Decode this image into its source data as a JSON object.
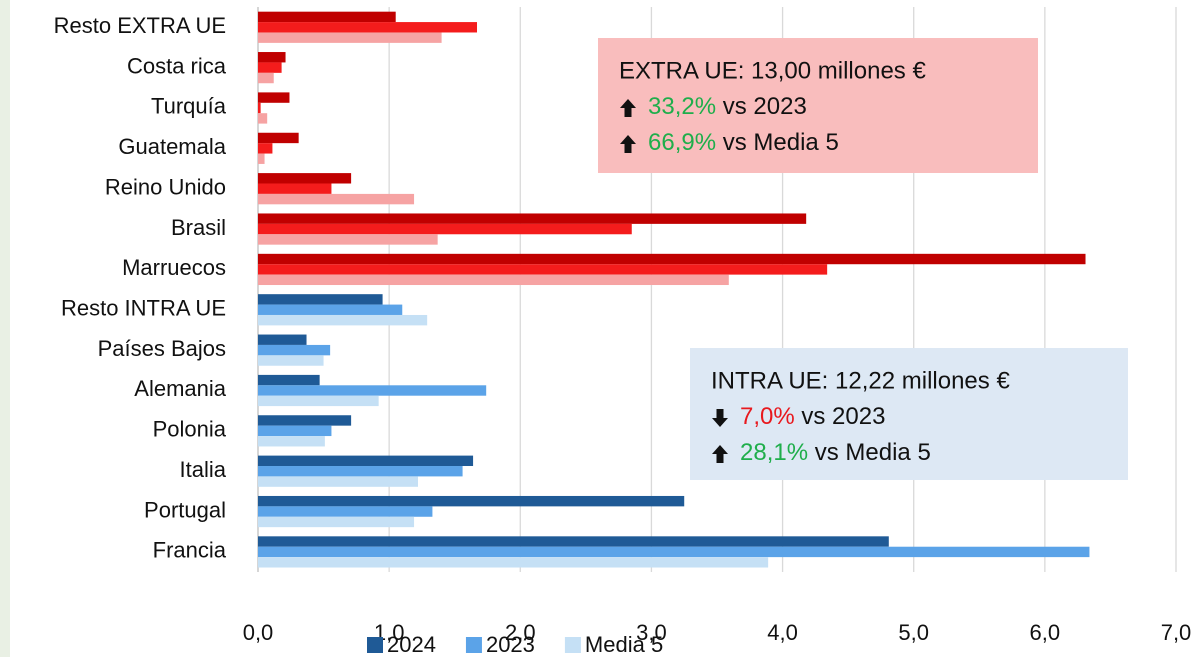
{
  "chart_data": {
    "type": "hbar",
    "categories": [
      "Resto EXTRA UE",
      "Costa rica",
      "Turquía",
      "Guatemala",
      "Reino Unido",
      "Brasil",
      "Marruecos",
      "Resto INTRA UE",
      "Países Bajos",
      "Alemania",
      "Polonia",
      "Italia",
      "Portugal",
      "Francia"
    ],
    "series": [
      {
        "name": "2024",
        "color": "#1f5a96",
        "colors": [
          "#c00000",
          "#c00000",
          "#c00000",
          "#c00000",
          "#c00000",
          "#c00000",
          "#c00000",
          "#1f5a96",
          "#1f5a96",
          "#1f5a96",
          "#1f5a96",
          "#1f5a96",
          "#1f5a96",
          "#1f5a96"
        ],
        "values": [
          1.05,
          0.21,
          0.24,
          0.31,
          0.71,
          4.18,
          6.31,
          0.95,
          0.37,
          0.47,
          0.71,
          1.64,
          3.25,
          4.81
        ]
      },
      {
        "name": "2023",
        "color": "#5ba3e8",
        "colors": [
          "#f41c1c",
          "#f41c1c",
          "#f41c1c",
          "#f41c1c",
          "#f41c1c",
          "#f41c1c",
          "#f41c1c",
          "#5ba3e8",
          "#5ba3e8",
          "#5ba3e8",
          "#5ba3e8",
          "#5ba3e8",
          "#5ba3e8",
          "#5ba3e8"
        ],
        "values": [
          1.67,
          0.18,
          0.02,
          0.11,
          0.56,
          2.85,
          4.34,
          1.1,
          0.55,
          1.74,
          0.56,
          1.56,
          1.33,
          6.34
        ]
      },
      {
        "name": "Media 5",
        "color": "#c5e0f5",
        "colors": [
          "#f6a3a3",
          "#f6a3a3",
          "#f6a3a3",
          "#f6a3a3",
          "#f6a3a3",
          "#f6a3a3",
          "#f6a3a3",
          "#c5e0f5",
          "#c5e0f5",
          "#c5e0f5",
          "#c5e0f5",
          "#c5e0f5",
          "#c5e0f5",
          "#c5e0f5"
        ],
        "values": [
          1.4,
          0.12,
          0.07,
          0.05,
          1.19,
          1.37,
          3.59,
          1.29,
          0.5,
          0.92,
          0.51,
          1.22,
          1.19,
          3.89
        ]
      }
    ],
    "xlim": [
      0,
      7
    ],
    "xticks": [
      {
        "value": 0,
        "label": "0,0"
      },
      {
        "value": 1,
        "label": "1,0"
      },
      {
        "value": 2,
        "label": "2,0"
      },
      {
        "value": 3,
        "label": "3,0"
      },
      {
        "value": 4,
        "label": "4,0"
      },
      {
        "value": 5,
        "label": "5,0"
      },
      {
        "value": 6,
        "label": "6,0"
      },
      {
        "value": 7,
        "label": "7,0"
      }
    ],
    "grid": true,
    "legend": "bottom",
    "annotations": [
      {
        "title": "EXTRA UE: 13,00 millones €",
        "background": "#f9bdbd",
        "lines": [
          {
            "arrow": "up",
            "value": "33,2%",
            "color": "#1fae4b",
            "text": "vs 2023"
          },
          {
            "arrow": "up",
            "value": "66,9%",
            "color": "#1fae4b",
            "text": "vs Media 5"
          }
        ]
      },
      {
        "title": "INTRA UE: 12,22 millones €",
        "background": "#dde8f4",
        "lines": [
          {
            "arrow": "down",
            "value": "7,0%",
            "color": "#e8191e",
            "text": "vs 2023"
          },
          {
            "arrow": "up",
            "value": "28,1%",
            "color": "#1fae4b",
            "text": "vs Media 5"
          }
        ]
      }
    ]
  }
}
